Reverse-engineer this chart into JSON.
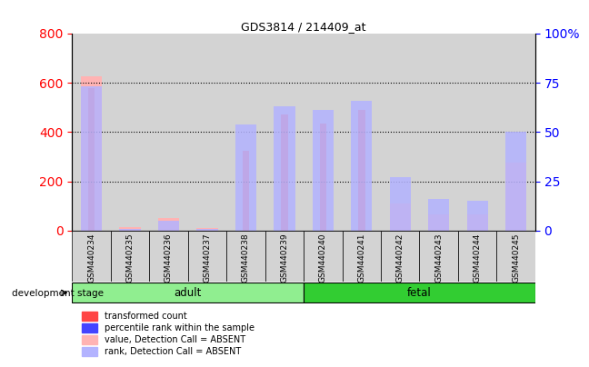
{
  "title": "GDS3814 / 214409_at",
  "samples": [
    "GSM440234",
    "GSM440235",
    "GSM440236",
    "GSM440237",
    "GSM440238",
    "GSM440239",
    "GSM440240",
    "GSM440241",
    "GSM440242",
    "GSM440243",
    "GSM440244",
    "GSM440245"
  ],
  "groups": [
    "adult",
    "adult",
    "adult",
    "adult",
    "adult",
    "adult",
    "fetal",
    "fetal",
    "fetal",
    "fetal",
    "fetal",
    "fetal"
  ],
  "transformed_count": [
    580,
    0,
    0,
    0,
    325,
    470,
    435,
    490,
    0,
    0,
    0,
    0
  ],
  "percentile_rank": [
    0,
    0,
    0,
    0,
    0,
    0,
    0,
    0,
    0,
    0,
    0,
    0
  ],
  "absent_value": [
    625,
    15,
    50,
    10,
    0,
    0,
    0,
    0,
    110,
    65,
    65,
    275
  ],
  "absent_rank_pct": [
    73,
    1,
    5,
    1,
    54,
    63,
    61,
    66,
    27,
    16,
    15,
    50
  ],
  "left_ylim": [
    0,
    800
  ],
  "right_ylim": [
    0,
    100
  ],
  "left_yticks": [
    0,
    200,
    400,
    600,
    800
  ],
  "right_yticks": [
    0,
    25,
    50,
    75,
    100
  ],
  "left_tick_color": "#ff0000",
  "right_tick_color": "#0000ff",
  "bar_absent_value_color": "#ffb3b3",
  "bar_absent_rank_color": "#b3b3ff",
  "bar_tc_color": "#ff6666",
  "bar_pr_color": "#4444ff",
  "adult_color": "#90ee90",
  "fetal_color": "#32cd32",
  "sample_bg_color": "#d3d3d3",
  "legend_items": [
    {
      "label": "transformed count",
      "color": "#ff4444"
    },
    {
      "label": "percentile rank within the sample",
      "color": "#4444ff"
    },
    {
      "label": "value, Detection Call = ABSENT",
      "color": "#ffb3b3"
    },
    {
      "label": "rank, Detection Call = ABSENT",
      "color": "#b3b3ff"
    }
  ]
}
